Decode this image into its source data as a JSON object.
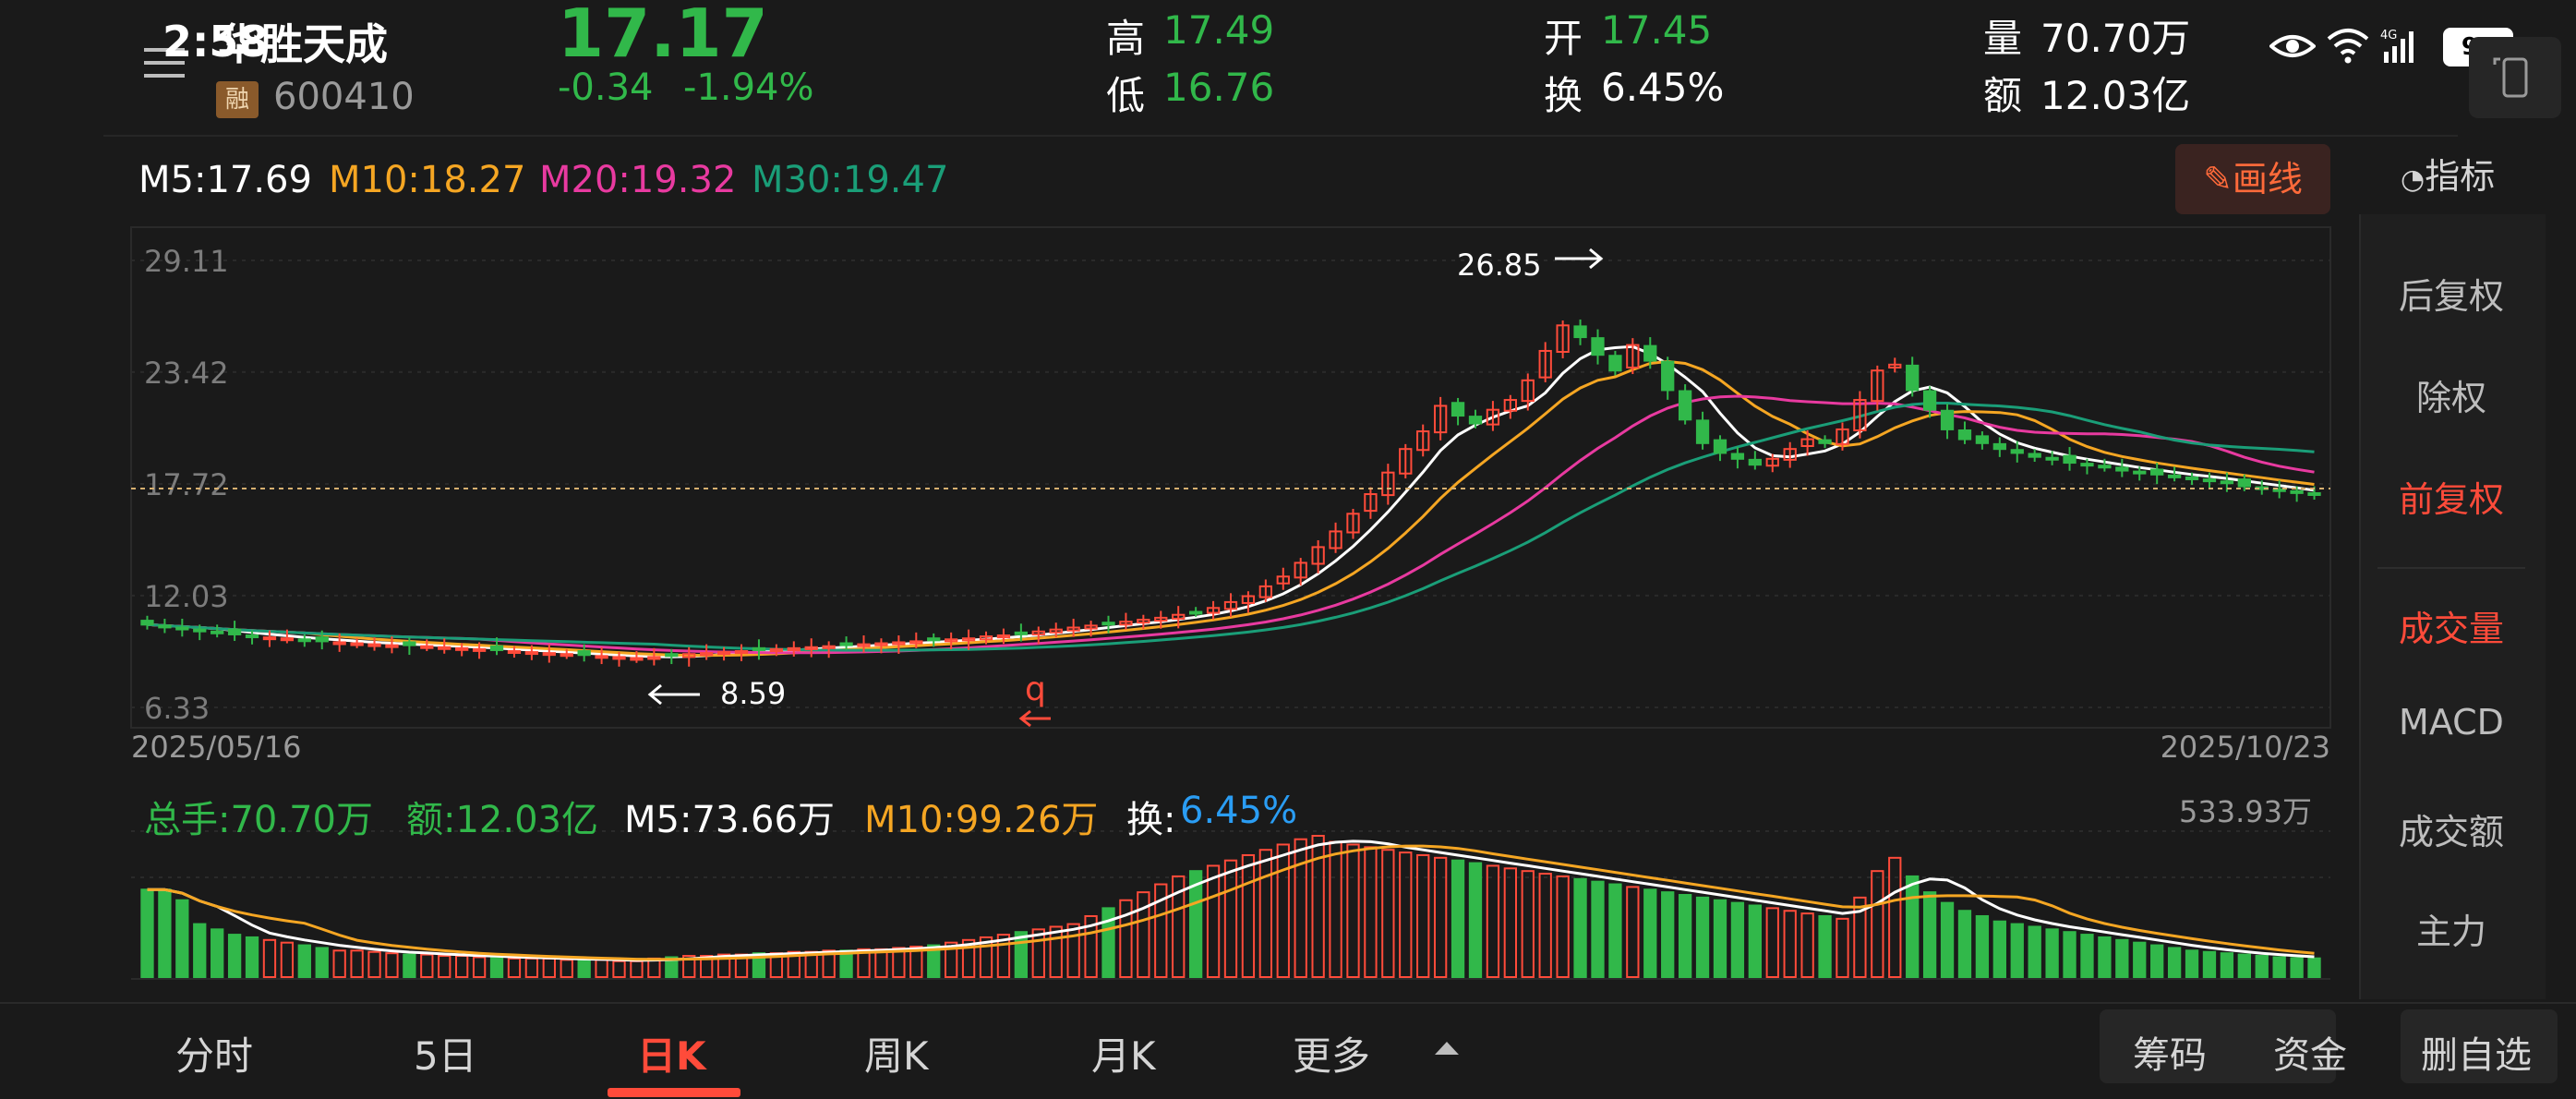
{
  "status_bar": {
    "time": "2:58",
    "battery": "95",
    "network": "4G"
  },
  "stock": {
    "name": "华胜天成",
    "code": "600410",
    "margin_badge": "融",
    "price": "17.17",
    "change": "-0.34",
    "change_pct": "-1.94%",
    "high_label": "高",
    "high": "17.49",
    "low_label": "低",
    "low": "16.76",
    "open_label": "开",
    "open": "17.45",
    "turnover_label": "换",
    "turnover": "6.45%",
    "volume_label": "量",
    "volume": "70.70万",
    "amount_label": "额",
    "amount": "12.03亿"
  },
  "ma": {
    "m5": "M5:17.69",
    "m10": "M10:18.27",
    "m20": "M20:19.32",
    "m30": "M30:19.47"
  },
  "draw_button": "画线",
  "indicator_button": "指标",
  "price_axis": [
    "29.11",
    "23.42",
    "17.72",
    "12.03",
    "6.33"
  ],
  "date_start": "2025/05/16",
  "date_end": "2025/10/23",
  "annotations": {
    "high_label": "26.85",
    "low_label": "8.59",
    "q_mark": "q"
  },
  "volume_panel": {
    "total": "总手:70.70万",
    "amount": "额:12.03亿",
    "m5": "M5:73.66万",
    "m10": "M10:99.26万",
    "turnover_label": "换:",
    "turnover": "6.45%",
    "max": "533.93万"
  },
  "side_menu": {
    "adjust": [
      "后复权",
      "除权",
      "前复权"
    ],
    "indicators": [
      "成交量",
      "MACD",
      "成交额",
      "主力"
    ]
  },
  "tabs": [
    "分时",
    "5日",
    "日K",
    "周K",
    "月K",
    "更多"
  ],
  "bottom_buttons": [
    "筹码",
    "资金",
    "删自选"
  ],
  "colors": {
    "up": "#ff4b3a",
    "down": "#31b84a",
    "ma5": "#ffffff",
    "ma10": "#f5a623",
    "ma20": "#e83aa0",
    "ma30": "#1a9e78",
    "bg": "#1a1a1a"
  },
  "chart_data": {
    "type": "candlestick",
    "y_range": [
      6.33,
      29.11
    ],
    "closes": [
      10.55,
      10.45,
      10.35,
      10.25,
      10.15,
      10.05,
      9.95,
      9.9,
      9.85,
      9.75,
      9.7,
      9.65,
      9.6,
      9.55,
      9.5,
      9.5,
      9.45,
      9.4,
      9.35,
      9.3,
      9.25,
      9.2,
      9.15,
      9.1,
      9.05,
      9.0,
      8.95,
      8.9,
      8.85,
      8.9,
      8.95,
      9.05,
      9.1,
      9.15,
      9.2,
      9.25,
      9.3,
      9.35,
      9.4,
      9.45,
      9.5,
      9.55,
      9.6,
      9.65,
      9.7,
      9.75,
      9.8,
      9.85,
      9.95,
      10.0,
      10.1,
      10.2,
      10.3,
      10.4,
      10.5,
      10.6,
      10.7,
      10.8,
      10.9,
      11.05,
      11.2,
      11.4,
      11.7,
      12.0,
      12.5,
      13.0,
      13.7,
      14.5,
      15.3,
      16.2,
      17.2,
      18.3,
      19.5,
      20.4,
      21.7,
      21.2,
      20.8,
      21.5,
      22.0,
      23.0,
      24.5,
      25.8,
      25.2,
      24.3,
      23.5,
      24.8,
      24.0,
      22.5,
      21.0,
      19.8,
      19.3,
      19.0,
      18.7,
      19.0,
      19.5,
      20.0,
      19.8,
      20.5,
      22.0,
      23.5,
      23.8,
      22.5,
      21.5,
      20.5,
      20.0,
      19.8,
      19.5,
      19.3,
      19.1,
      19.0,
      18.8,
      18.7,
      18.6,
      18.4,
      18.3,
      18.2,
      18.1,
      18.0,
      17.9,
      17.8,
      17.6,
      17.5,
      17.4,
      17.3,
      17.17
    ],
    "volumes_wan": [
      330,
      330,
      290,
      200,
      180,
      160,
      150,
      140,
      130,
      120,
      110,
      100,
      100,
      95,
      90,
      85,
      85,
      80,
      80,
      75,
      75,
      70,
      70,
      70,
      65,
      65,
      65,
      60,
      60,
      70,
      75,
      80,
      80,
      85,
      85,
      90,
      90,
      95,
      95,
      100,
      100,
      105,
      105,
      110,
      115,
      120,
      130,
      140,
      150,
      160,
      170,
      180,
      190,
      200,
      230,
      260,
      290,
      320,
      350,
      380,
      400,
      420,
      440,
      460,
      480,
      500,
      520,
      533,
      510,
      500,
      490,
      480,
      470,
      460,
      450,
      440,
      430,
      420,
      410,
      400,
      390,
      380,
      370,
      360,
      350,
      340,
      330,
      320,
      310,
      300,
      290,
      280,
      270,
      260,
      250,
      240,
      230,
      220,
      300,
      400,
      450,
      380,
      320,
      280,
      250,
      230,
      210,
      200,
      190,
      180,
      170,
      160,
      150,
      140,
      130,
      120,
      110,
      100,
      95,
      90,
      85,
      80,
      75,
      72,
      70.7
    ]
  }
}
